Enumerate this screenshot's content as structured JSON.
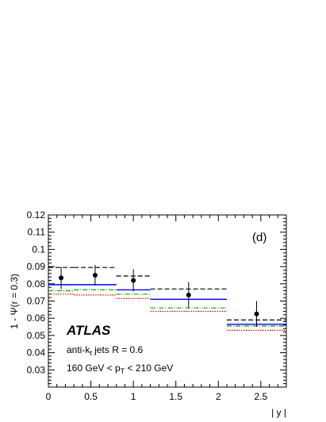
{
  "chart_data": {
    "type": "scatter",
    "panel_label": "(d)",
    "ylabel": "1 - Ψ(r = 0.3)",
    "xlabel": "| y |",
    "xlim": [
      0,
      2.8
    ],
    "ylim": [
      0.02,
      0.12
    ],
    "x_ticks": [
      0,
      0.5,
      1,
      1.5,
      2,
      2.5
    ],
    "x_tick_labels": [
      "0",
      "0.5",
      "1",
      "1.5",
      "2",
      "2.5"
    ],
    "y_ticks": [
      0.03,
      0.04,
      0.05,
      0.06,
      0.07,
      0.08,
      0.09,
      0.1,
      0.11,
      0.12
    ],
    "y_tick_labels": [
      "0.03",
      "0.04",
      "0.05",
      "0.06",
      "0.07",
      "0.08",
      "0.09",
      "0.1",
      "0.11",
      "0.12"
    ],
    "annotations": {
      "atlas": "ATLAS",
      "jets_line": {
        "pre": "anti-k",
        "sub": "t",
        "post": " jets R = 0.6"
      },
      "pt_line": {
        "pre": "160 GeV < p",
        "sub": "T",
        "post": " < 210 GeV"
      }
    },
    "data": [
      {
        "x": 0.15,
        "y": 0.0835,
        "err": 0.0065
      },
      {
        "x": 0.55,
        "y": 0.085,
        "err": 0.006
      },
      {
        "x": 1.0,
        "y": 0.082,
        "err": 0.0065
      },
      {
        "x": 1.65,
        "y": 0.0735,
        "err": 0.0075
      },
      {
        "x": 2.45,
        "y": 0.0625,
        "err": 0.0075
      }
    ],
    "bin_edges": [
      0,
      0.3,
      0.8,
      1.2,
      2.1,
      2.8
    ],
    "series": [
      {
        "values": [
          0.0895,
          0.0895,
          0.0845,
          0.077,
          0.059
        ],
        "color": "#000000",
        "style": "dashed"
      },
      {
        "values": [
          0.0795,
          0.0795,
          0.0765,
          0.071,
          0.0565
        ],
        "color": "#0000ff",
        "style": "solid"
      },
      {
        "values": [
          0.076,
          0.0765,
          0.074,
          0.066,
          0.0555
        ],
        "color": "#00aa00",
        "style": "dashdot"
      },
      {
        "values": [
          0.074,
          0.0735,
          0.0715,
          0.064,
          0.053
        ],
        "color": "#ff0000",
        "style": "dotted"
      }
    ]
  }
}
